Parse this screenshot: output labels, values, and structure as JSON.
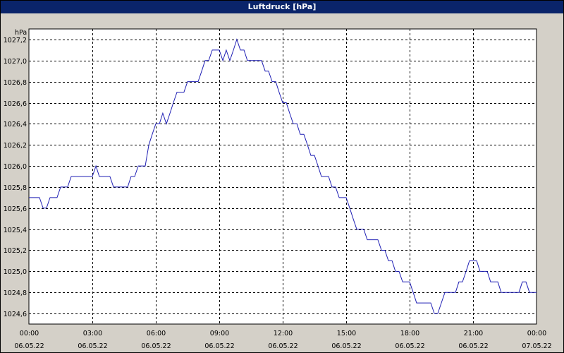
{
  "window": {
    "title": "Luftdruck [hPa]"
  },
  "colors": {
    "line": "#1f1fb4",
    "grid": "#000000",
    "plot_bg": "#ffffff",
    "frame_bg": "#d4d0c8",
    "titlebar": "#0a246a"
  },
  "chart_data": {
    "type": "line",
    "title": "Luftdruck [hPa]",
    "ylabel": "hPa",
    "xlabel": "",
    "ylim": [
      1024.5,
      1027.3
    ],
    "xlim_hours": [
      0,
      24
    ],
    "grid": true,
    "yticks": [
      "1024,6",
      "1024,8",
      "1025,0",
      "1025,2",
      "1025,4",
      "1025,6",
      "1025,8",
      "1026,0",
      "1026,2",
      "1026,4",
      "1026,6",
      "1026,8",
      "1027,0",
      "1027,2"
    ],
    "ytick_values": [
      1024.6,
      1024.8,
      1025.0,
      1025.2,
      1025.4,
      1025.6,
      1025.8,
      1026.0,
      1026.2,
      1026.4,
      1026.6,
      1026.8,
      1027.0,
      1027.2
    ],
    "xticks": [
      {
        "time": "00:00",
        "date": "06.05.22"
      },
      {
        "time": "03:00",
        "date": "06.05.22"
      },
      {
        "time": "06:00",
        "date": "06.05.22"
      },
      {
        "time": "09:00",
        "date": "06.05.22"
      },
      {
        "time": "12:00",
        "date": "06.05.22"
      },
      {
        "time": "15:00",
        "date": "06.05.22"
      },
      {
        "time": "18:00",
        "date": "06.05.22"
      },
      {
        "time": "21:00",
        "date": "06.05.22"
      },
      {
        "time": "00:00",
        "date": "07.05.22"
      }
    ],
    "series": [
      {
        "values": [
          [
            0.0,
            1025.7
          ],
          [
            0.5,
            1025.7
          ],
          [
            0.67,
            1025.6
          ],
          [
            0.83,
            1025.6
          ],
          [
            1.0,
            1025.7
          ],
          [
            1.33,
            1025.7
          ],
          [
            1.5,
            1025.8
          ],
          [
            1.83,
            1025.8
          ],
          [
            2.0,
            1025.9
          ],
          [
            3.0,
            1025.9
          ],
          [
            3.17,
            1026.0
          ],
          [
            3.33,
            1025.9
          ],
          [
            3.83,
            1025.9
          ],
          [
            4.0,
            1025.8
          ],
          [
            4.67,
            1025.8
          ],
          [
            4.83,
            1025.9
          ],
          [
            5.0,
            1025.9
          ],
          [
            5.17,
            1026.0
          ],
          [
            5.5,
            1026.0
          ],
          [
            5.67,
            1026.2
          ],
          [
            5.83,
            1026.3
          ],
          [
            6.0,
            1026.4
          ],
          [
            6.17,
            1026.4
          ],
          [
            6.33,
            1026.5
          ],
          [
            6.5,
            1026.4
          ],
          [
            6.67,
            1026.5
          ],
          [
            6.83,
            1026.6
          ],
          [
            7.0,
            1026.7
          ],
          [
            7.33,
            1026.7
          ],
          [
            7.5,
            1026.8
          ],
          [
            8.0,
            1026.8
          ],
          [
            8.17,
            1026.9
          ],
          [
            8.33,
            1027.0
          ],
          [
            8.5,
            1027.0
          ],
          [
            8.67,
            1027.1
          ],
          [
            9.0,
            1027.1
          ],
          [
            9.17,
            1027.0
          ],
          [
            9.33,
            1027.1
          ],
          [
            9.5,
            1027.0
          ],
          [
            9.67,
            1027.1
          ],
          [
            9.83,
            1027.2
          ],
          [
            10.0,
            1027.1
          ],
          [
            10.17,
            1027.1
          ],
          [
            10.33,
            1027.0
          ],
          [
            11.0,
            1027.0
          ],
          [
            11.17,
            1026.9
          ],
          [
            11.33,
            1026.9
          ],
          [
            11.5,
            1026.8
          ],
          [
            11.67,
            1026.8
          ],
          [
            11.83,
            1026.7
          ],
          [
            12.0,
            1026.6
          ],
          [
            12.17,
            1026.6
          ],
          [
            12.33,
            1026.5
          ],
          [
            12.5,
            1026.4
          ],
          [
            12.67,
            1026.4
          ],
          [
            12.83,
            1026.3
          ],
          [
            13.0,
            1026.3
          ],
          [
            13.17,
            1026.2
          ],
          [
            13.33,
            1026.1
          ],
          [
            13.5,
            1026.1
          ],
          [
            13.67,
            1026.0
          ],
          [
            13.83,
            1025.9
          ],
          [
            14.17,
            1025.9
          ],
          [
            14.33,
            1025.8
          ],
          [
            14.5,
            1025.8
          ],
          [
            14.67,
            1025.7
          ],
          [
            15.0,
            1025.7
          ],
          [
            15.17,
            1025.6
          ],
          [
            15.33,
            1025.5
          ],
          [
            15.5,
            1025.4
          ],
          [
            15.83,
            1025.4
          ],
          [
            16.0,
            1025.3
          ],
          [
            16.5,
            1025.3
          ],
          [
            16.67,
            1025.2
          ],
          [
            16.83,
            1025.2
          ],
          [
            17.0,
            1025.1
          ],
          [
            17.17,
            1025.1
          ],
          [
            17.33,
            1025.0
          ],
          [
            17.5,
            1025.0
          ],
          [
            17.67,
            1024.9
          ],
          [
            18.0,
            1024.9
          ],
          [
            18.17,
            1024.8
          ],
          [
            18.33,
            1024.7
          ],
          [
            19.0,
            1024.7
          ],
          [
            19.17,
            1024.6
          ],
          [
            19.33,
            1024.6
          ],
          [
            19.5,
            1024.7
          ],
          [
            19.67,
            1024.8
          ],
          [
            20.17,
            1024.8
          ],
          [
            20.33,
            1024.9
          ],
          [
            20.5,
            1024.9
          ],
          [
            20.67,
            1025.0
          ],
          [
            20.83,
            1025.1
          ],
          [
            21.17,
            1025.1
          ],
          [
            21.33,
            1025.0
          ],
          [
            21.67,
            1025.0
          ],
          [
            21.83,
            1024.9
          ],
          [
            22.17,
            1024.9
          ],
          [
            22.33,
            1024.8
          ],
          [
            23.17,
            1024.8
          ],
          [
            23.33,
            1024.9
          ],
          [
            23.5,
            1024.9
          ],
          [
            23.67,
            1024.8
          ],
          [
            24.0,
            1024.8
          ]
        ]
      }
    ]
  }
}
